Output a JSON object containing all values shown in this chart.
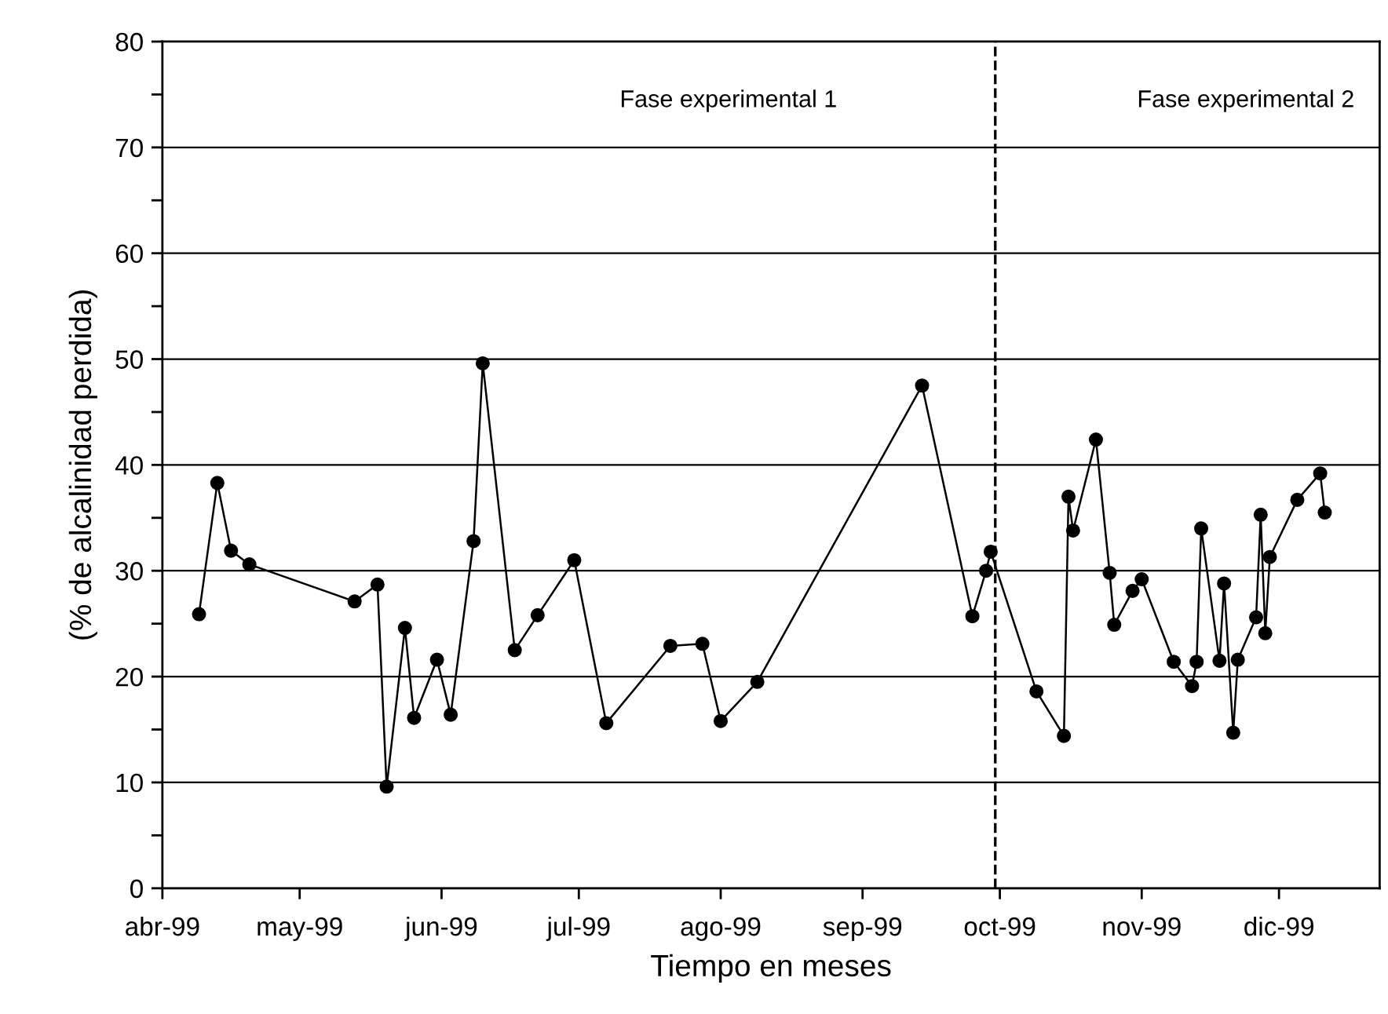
{
  "chart_data": {
    "type": "line",
    "xlabel": "Tiempo en meses",
    "ylabel": "(% de alcalinidad perdida)",
    "x": [
      "1999-04-09",
      "1999-04-13",
      "1999-04-16",
      "1999-04-20",
      "1999-05-13",
      "1999-05-18",
      "1999-05-20",
      "1999-05-24",
      "1999-05-26",
      "1999-05-31",
      "1999-06-03",
      "1999-06-08",
      "1999-06-10",
      "1999-06-17",
      "1999-06-22",
      "1999-06-30",
      "1999-07-07",
      "1999-07-21",
      "1999-07-28",
      "1999-08-01",
      "1999-08-09",
      "1999-09-14",
      "1999-09-25",
      "1999-09-28",
      "1999-09-29",
      "1999-10-09",
      "1999-10-15",
      "1999-10-16",
      "1999-10-17",
      "1999-10-22",
      "1999-10-25",
      "1999-10-26",
      "1999-10-30",
      "1999-11-01",
      "1999-11-08",
      "1999-11-12",
      "1999-11-13",
      "1999-11-14",
      "1999-11-18",
      "1999-11-19",
      "1999-11-21",
      "1999-11-22",
      "1999-11-26",
      "1999-11-27",
      "1999-11-28",
      "1999-11-29",
      "1999-12-05",
      "1999-12-10",
      "1999-12-11"
    ],
    "series": [
      {
        "color": "#000000",
        "values": [
          25.9,
          38.3,
          31.9,
          30.6,
          27.1,
          28.7,
          9.6,
          24.6,
          16.1,
          21.6,
          16.4,
          32.8,
          49.6,
          22.5,
          25.8,
          31.0,
          15.6,
          22.9,
          23.1,
          15.8,
          19.5,
          47.5,
          25.7,
          30.0,
          31.8,
          18.6,
          14.4,
          37.0,
          33.8,
          42.4,
          29.8,
          24.9,
          28.1,
          29.2,
          21.4,
          19.1,
          21.4,
          34.0,
          21.5,
          28.8,
          14.7,
          21.6,
          25.6,
          35.3,
          24.1,
          31.3,
          36.7,
          39.2,
          35.5
        ]
      }
    ],
    "marker": "circle",
    "line_style": "solid",
    "grid": "y",
    "legend": false,
    "xlim": [
      "1999-04-01",
      "1999-12-23"
    ],
    "xticks": [
      {
        "value": "1999-04-01",
        "label": "abr-99"
      },
      {
        "value": "1999-05-01",
        "label": "may-99"
      },
      {
        "value": "1999-06-01",
        "label": "jun-99"
      },
      {
        "value": "1999-07-01",
        "label": "jul-99"
      },
      {
        "value": "1999-08-01",
        "label": "ago-99"
      },
      {
        "value": "1999-09-01",
        "label": "sep-99"
      },
      {
        "value": "1999-10-01",
        "label": "oct-99"
      },
      {
        "value": "1999-11-01",
        "label": "nov-99"
      },
      {
        "value": "1999-12-01",
        "label": "dic-99"
      }
    ],
    "ylim": [
      0,
      80
    ],
    "yticks": [
      0,
      {
        "value": 5,
        "label": null
      },
      10,
      {
        "value": 15,
        "label": null
      },
      20,
      {
        "value": 25,
        "label": null
      },
      30,
      {
        "value": 35,
        "label": null
      },
      40,
      {
        "value": 45,
        "label": null
      },
      50,
      {
        "value": 55,
        "label": null
      },
      60,
      {
        "value": 65,
        "label": null
      },
      70,
      {
        "value": 75,
        "label": null
      },
      80
    ],
    "ref_lines": [
      {
        "axis": "x",
        "value": "1999-09-30",
        "color": "#000000",
        "line_style": "dashed"
      }
    ],
    "annotations": [
      "Fase experimental 1",
      "Fase experimental 2"
    ]
  }
}
